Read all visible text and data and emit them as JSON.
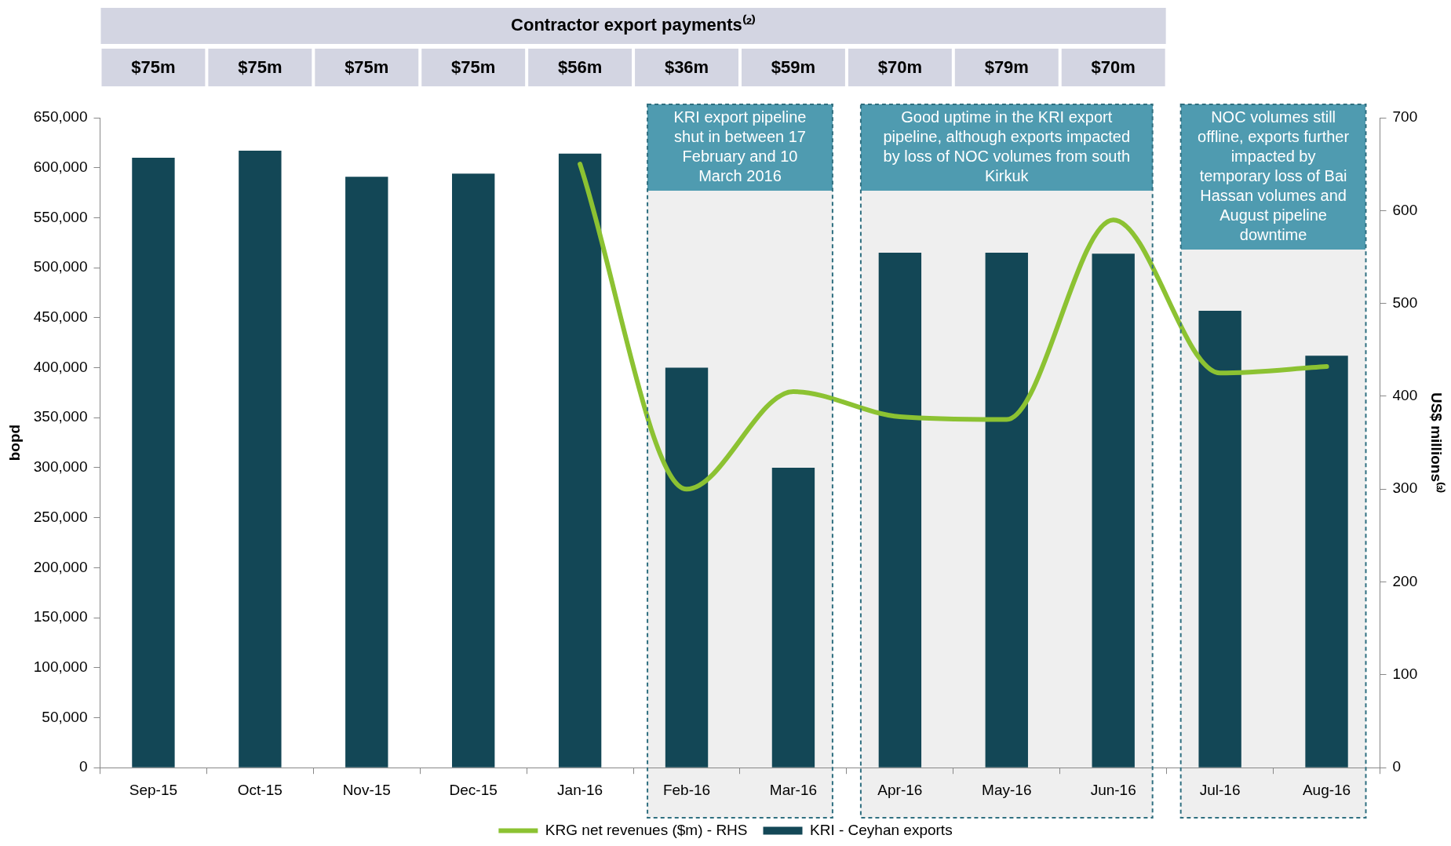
{
  "chart_data": {
    "type": "bar",
    "categories": [
      "Sep-15",
      "Oct-15",
      "Nov-15",
      "Dec-15",
      "Jan-16",
      "Feb-16",
      "Mar-16",
      "Apr-16",
      "May-16",
      "Jun-16",
      "Jul-16",
      "Aug-16"
    ],
    "series": [
      {
        "name": "KRI - Ceyhan exports",
        "color": "#134756",
        "values": [
          610000,
          617000,
          591000,
          594000,
          614000,
          400000,
          300000,
          515000,
          515000,
          514000,
          457000,
          412000
        ]
      },
      {
        "name": "KRG net revenues ($m) - RHS",
        "type": "line",
        "axis": "y2",
        "color": "#8cc232",
        "values": [
          null,
          null,
          null,
          null,
          650,
          300,
          405,
          378,
          375,
          590,
          425,
          432
        ]
      }
    ],
    "ylabel": "bopd",
    "y2label": "US$ millions⁽³⁾",
    "ylim": [
      0,
      650000
    ],
    "yticks": [
      {
        "value": 0,
        "label": "0"
      },
      {
        "value": 50000,
        "label": "50,000"
      },
      {
        "value": 100000,
        "label": "100,000"
      },
      {
        "value": 150000,
        "label": "150,000"
      },
      {
        "value": 200000,
        "label": "200,000"
      },
      {
        "value": 250000,
        "label": "250,000"
      },
      {
        "value": 300000,
        "label": "300,000"
      },
      {
        "value": 350000,
        "label": "350,000"
      },
      {
        "value": 400000,
        "label": "400,000"
      },
      {
        "value": 450000,
        "label": "450,000"
      },
      {
        "value": 500000,
        "label": "500,000"
      },
      {
        "value": 550000,
        "label": "550,000"
      },
      {
        "value": 600000,
        "label": "600,000"
      },
      {
        "value": 650000,
        "label": "650,000"
      }
    ],
    "y2lim": [
      0,
      700
    ],
    "y2ticks": [
      0,
      100,
      200,
      300,
      400,
      500,
      600,
      700
    ],
    "bands": [
      {
        "axis": "x",
        "from": "Feb-16",
        "to": "Mar-16",
        "color": "#efefef",
        "label": "KRI export pipeline shut in between 17 February and 10 March 2016"
      },
      {
        "axis": "x",
        "from": "Apr-16",
        "to": "Jun-16",
        "color": "#efefef",
        "label": "Good uptime in the KRI export pipeline, although exports impacted by loss of NOC volumes from south Kirkuk"
      },
      {
        "axis": "x",
        "from": "Jul-16",
        "to": "Aug-16",
        "color": "#efefef",
        "label": "NOC volumes still offline, exports further impacted by temporary loss of Bai Hassan volumes and August pipeline downtime"
      }
    ],
    "annotations": [
      "Contractor export payments⁽²⁾",
      "$75m",
      "$75m",
      "$75m",
      "$75m",
      "$56m",
      "$36m",
      "$59m",
      "$70m",
      "$79m",
      "$70m"
    ],
    "grid": false,
    "legend": "bottom",
    "marker": "none",
    "line_style": "solid"
  }
}
